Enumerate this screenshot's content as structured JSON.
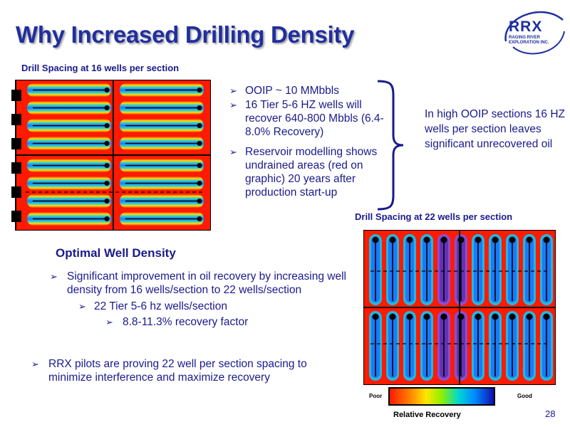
{
  "title": "Why Increased Drilling Density",
  "logo": {
    "mark": "RRX",
    "sub": "RAGING RIVER EXPLORATION INC."
  },
  "caption_16": "Drill Spacing at 16 wells per section",
  "caption_22": "Drill Spacing at 22 wells per section",
  "top_bullets": [
    "OOIP ~ 10 MMbbls",
    "16 Tier 5-6 HZ wells will recover 640-800 Mbbls (6.4-8.0% Recovery)",
    "Reservoir modelling shows undrained areas (red on graphic) 20 years after production start-up"
  ],
  "bracket_note": "In high OOIP sections 16 HZ wells per section leaves significant unrecovered oil",
  "section_title": "Optimal Well Density",
  "optimal_bullets": {
    "main": "Significant improvement in oil recovery by increasing well density from 16 wells/section to 22 wells/section",
    "sub": "22 Tier 5-6 hz wells/section",
    "subsub": "8.8-11.3% recovery factor"
  },
  "pilot_bullet": "RRX pilots are proving 22 well per section spacing to minimize interference and maximize recovery",
  "legend": {
    "poor": "Poor",
    "good": "Good",
    "label": "Relative Recovery"
  },
  "page_number": "28",
  "colors": {
    "title": "#1f2f9f",
    "text": "#1a1a8c",
    "undrained": "#ff1a00",
    "drained": "#1010b0"
  }
}
